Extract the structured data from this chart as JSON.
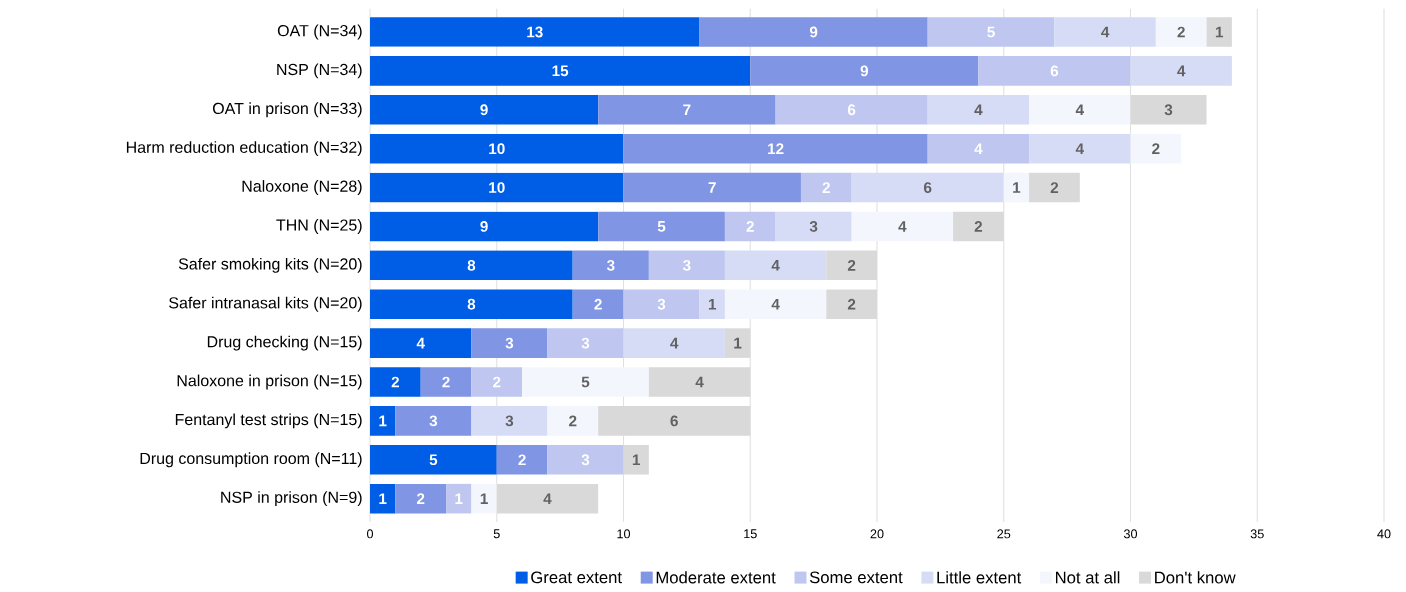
{
  "chart_data": {
    "type": "bar",
    "orientation": "horizontal",
    "stacked": true,
    "data_labels": true,
    "grid": "x",
    "legend": "bottom",
    "categories": [
      "OAT (N=34)",
      "NSP (N=34)",
      "OAT in prison (N=33)",
      "Harm reduction education (N=32)",
      "Naloxone (N=28)",
      "THN (N=25)",
      "Safer smoking kits (N=20)",
      "Safer intranasal kits (N=20)",
      "Drug checking (N=15)",
      "Naloxone in prison (N=15)",
      "Fentanyl test strips (N=15)",
      "Drug consumption room (N=11)",
      "NSP in prison (N=9)"
    ],
    "series": [
      {
        "name": "Great extent",
        "color": "#005de5",
        "values": [
          13,
          15,
          9,
          10,
          10,
          9,
          8,
          8,
          4,
          2,
          1,
          5,
          1
        ]
      },
      {
        "name": "Moderate extent",
        "color": "#8095e3",
        "values": [
          9,
          9,
          7,
          12,
          7,
          5,
          3,
          2,
          3,
          2,
          3,
          2,
          2
        ]
      },
      {
        "name": "Some extent",
        "color": "#bfc7f0",
        "values": [
          5,
          6,
          6,
          4,
          2,
          2,
          3,
          3,
          3,
          2,
          null,
          3,
          1
        ]
      },
      {
        "name": "Little extent",
        "color": "#d6dcf5",
        "values": [
          4,
          4,
          4,
          4,
          6,
          3,
          4,
          1,
          4,
          null,
          3,
          null,
          null
        ]
      },
      {
        "name": "Not at all",
        "color": "#f3f6fc",
        "values": [
          2,
          null,
          4,
          2,
          1,
          4,
          null,
          4,
          null,
          5,
          2,
          null,
          1
        ]
      },
      {
        "name": "Don't know",
        "color": "#d9d9d9",
        "values": [
          1,
          null,
          3,
          null,
          2,
          2,
          2,
          2,
          1,
          4,
          6,
          1,
          4
        ]
      }
    ],
    "xlim": [
      0,
      40
    ],
    "xticks": [
      0,
      5,
      10,
      15,
      20,
      25,
      30,
      35,
      40
    ]
  }
}
